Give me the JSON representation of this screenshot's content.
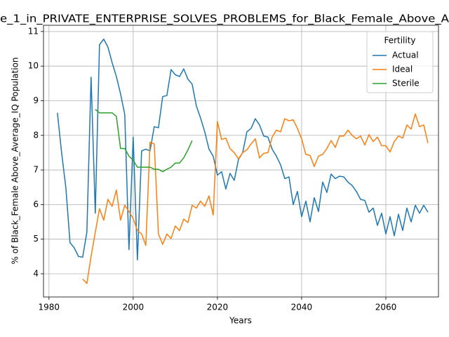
{
  "chart_data": {
    "type": "line",
    "title": "e_1_in_PRIVATE_ENTERPRISE_SOLVES_PROBLEMS_for_Black_Female_Above_A",
    "xlabel": "Years",
    "ylabel": "% of Black_Female Above_Average_IQ Population",
    "x": [
      1982,
      1983,
      1984,
      1985,
      1986,
      1987,
      1988,
      1989,
      1990,
      1991,
      1992,
      1993,
      1994,
      1995,
      1996,
      1997,
      1998,
      1999,
      2000,
      2001,
      2002,
      2003,
      2004,
      2005,
      2006,
      2007,
      2008,
      2009,
      2010,
      2011,
      2012,
      2013,
      2014,
      2015,
      2016,
      2017,
      2018,
      2019,
      2020,
      2021,
      2022,
      2023,
      2024,
      2025,
      2026,
      2027,
      2028,
      2029,
      2030,
      2031,
      2032,
      2033,
      2034,
      2035,
      2036,
      2037,
      2038,
      2039,
      2040,
      2041,
      2042,
      2043,
      2044,
      2045,
      2046,
      2047,
      2048,
      2049,
      2050,
      2051,
      2052,
      2053,
      2054,
      2055,
      2056,
      2057,
      2058,
      2059,
      2060,
      2061,
      2062,
      2063,
      2064,
      2065,
      2066,
      2067,
      2068,
      2069,
      2070
    ],
    "series": [
      {
        "name": "Actual",
        "color": "#1f77b4",
        "values": [
          8.65,
          7.5,
          6.5,
          4.9,
          4.75,
          4.5,
          4.48,
          5.2,
          9.68,
          5.75,
          10.62,
          10.78,
          10.55,
          10.1,
          9.7,
          9.2,
          8.6,
          4.7,
          7.95,
          4.4,
          7.55,
          7.6,
          7.55,
          8.25,
          8.22,
          9.12,
          9.15,
          9.9,
          9.75,
          9.7,
          9.92,
          9.62,
          9.48,
          8.85,
          8.5,
          8.1,
          7.6,
          7.4,
          6.85,
          6.95,
          6.45,
          6.9,
          6.7,
          7.3,
          7.5,
          8.1,
          8.2,
          8.48,
          8.3,
          7.98,
          7.95,
          7.6,
          7.4,
          7.15,
          6.75,
          6.8,
          6.0,
          6.38,
          5.65,
          6.1,
          5.5,
          6.2,
          5.8,
          6.65,
          6.35,
          6.88,
          6.75,
          6.82,
          6.8,
          6.65,
          6.55,
          6.38,
          6.15,
          6.12,
          5.78,
          5.9,
          5.4,
          5.75,
          5.15,
          5.65,
          5.1,
          5.72,
          5.25,
          5.9,
          5.5,
          5.98,
          5.75,
          5.98,
          5.78
        ]
      },
      {
        "name": "Ideal",
        "color": "#ff7f0e",
        "values": [
          null,
          null,
          null,
          null,
          null,
          null,
          3.85,
          3.72,
          4.5,
          5.2,
          5.88,
          5.55,
          6.15,
          5.95,
          6.42,
          5.55,
          5.98,
          5.8,
          5.6,
          5.25,
          5.15,
          4.82,
          7.8,
          7.75,
          5.15,
          4.85,
          5.15,
          5.02,
          5.38,
          5.25,
          5.58,
          5.48,
          5.98,
          5.9,
          6.1,
          5.95,
          6.25,
          5.7,
          8.4,
          7.88,
          7.92,
          7.62,
          7.5,
          7.32,
          7.5,
          7.58,
          7.75,
          7.9,
          7.35,
          7.48,
          7.5,
          7.95,
          8.15,
          8.1,
          8.48,
          8.42,
          8.45,
          8.2,
          7.9,
          7.45,
          7.42,
          7.1,
          7.4,
          7.45,
          7.62,
          7.85,
          7.65,
          7.98,
          7.98,
          8.15,
          8.0,
          7.9,
          7.98,
          7.72,
          8.02,
          7.82,
          7.95,
          7.7,
          7.7,
          7.52,
          7.82,
          7.98,
          7.92,
          8.3,
          8.18,
          8.62,
          8.25,
          8.3,
          7.78
        ]
      },
      {
        "name": "Sterile",
        "color": "#2ca02c",
        "values": [
          null,
          null,
          null,
          null,
          null,
          null,
          null,
          null,
          null,
          8.75,
          8.65,
          8.65,
          8.65,
          8.65,
          8.55,
          7.62,
          7.62,
          7.4,
          7.28,
          7.08,
          7.08,
          7.08,
          7.08,
          7.02,
          7.02,
          6.95,
          7.02,
          7.08,
          7.2,
          7.2,
          7.35,
          7.58,
          7.85,
          null,
          null,
          null,
          null,
          null,
          null,
          null,
          null,
          null,
          null,
          null,
          null,
          null,
          null,
          null,
          null,
          null,
          null,
          null,
          null,
          null,
          null,
          null,
          null,
          null,
          null,
          null,
          null,
          null,
          null,
          null,
          null,
          null,
          null,
          null,
          null,
          null,
          null,
          null,
          null,
          null,
          null,
          null,
          null,
          null,
          null,
          null,
          null,
          null,
          null,
          null,
          null,
          null,
          null,
          null,
          null
        ]
      }
    ],
    "xlim": [
      1978.7,
      2072.5
    ],
    "ylim": [
      3.33,
      11.18
    ],
    "xticks": [
      1980,
      2000,
      2020,
      2040,
      2060
    ],
    "yticks": [
      4,
      5,
      6,
      7,
      8,
      9,
      10,
      11
    ],
    "grid": true,
    "legend_title": "Fertility",
    "legend": "upper right"
  }
}
